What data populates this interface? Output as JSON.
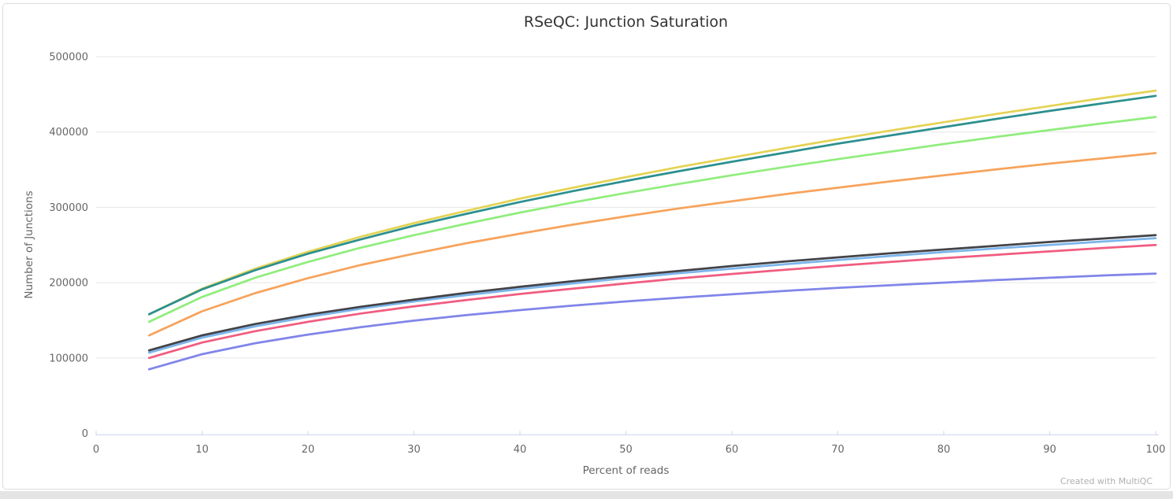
{
  "page": {
    "watermark": "Created with MultiQC"
  },
  "chart_data": {
    "type": "line",
    "title": "RSeQC: Junction Saturation",
    "xlabel": "Percent of reads",
    "ylabel": "Number of Junctions",
    "xlim": [
      0,
      100
    ],
    "ylim": [
      0,
      500000
    ],
    "x_ticks": [
      0,
      10,
      20,
      30,
      40,
      50,
      60,
      70,
      80,
      90,
      100
    ],
    "y_ticks": [
      0,
      100000,
      200000,
      300000,
      400000,
      500000
    ],
    "grid": "horizontal-only",
    "legend": "none",
    "x": [
      5,
      10,
      15,
      20,
      25,
      30,
      35,
      40,
      45,
      50,
      55,
      60,
      65,
      70,
      75,
      80,
      85,
      90,
      95,
      100
    ],
    "series": [
      {
        "name": "series-1",
        "color": "#7cb5ec",
        "values": [
          107000,
          127000,
          142000,
          154500,
          165500,
          175000,
          183500,
          191500,
          199000,
          206000,
          212500,
          218500,
          224500,
          230000,
          235500,
          240500,
          245500,
          250000,
          254500,
          259000
        ]
      },
      {
        "name": "series-2",
        "color": "#434348",
        "values": [
          110000,
          130000,
          145000,
          157500,
          168000,
          177500,
          186500,
          194500,
          202000,
          209000,
          215500,
          222000,
          228000,
          233500,
          239000,
          244000,
          249000,
          254000,
          258500,
          263000
        ]
      },
      {
        "name": "series-3",
        "color": "#90ed7d",
        "values": [
          148000,
          181000,
          206500,
          227500,
          246500,
          263000,
          278500,
          293000,
          306500,
          319000,
          331000,
          342500,
          353500,
          364000,
          374000,
          384000,
          393500,
          402500,
          411500,
          420000
        ]
      },
      {
        "name": "series-4",
        "color": "#f7a35c",
        "values": [
          130000,
          162000,
          186000,
          206000,
          223500,
          238500,
          252500,
          265000,
          277000,
          288000,
          298500,
          308000,
          317500,
          326000,
          334500,
          342500,
          350500,
          358000,
          365000,
          372000
        ]
      },
      {
        "name": "series-5",
        "color": "#8085e9",
        "values": [
          85000,
          105000,
          119500,
          131000,
          141000,
          149500,
          157000,
          163500,
          169500,
          175000,
          180000,
          184500,
          189000,
          193000,
          196500,
          200000,
          203500,
          206500,
          209500,
          212000
        ]
      },
      {
        "name": "series-6",
        "color": "#f15c80",
        "values": [
          100000,
          120500,
          135500,
          148000,
          159000,
          168500,
          177000,
          185000,
          192000,
          199000,
          205500,
          211500,
          217000,
          222500,
          227500,
          232500,
          237000,
          241500,
          246000,
          250000
        ]
      },
      {
        "name": "series-7",
        "color": "#e4d354",
        "values": [
          158000,
          192000,
          218500,
          241000,
          261000,
          279000,
          295500,
          311500,
          326000,
          340000,
          353500,
          366000,
          378500,
          390500,
          402000,
          413000,
          424000,
          434500,
          445000,
          455000
        ]
      },
      {
        "name": "series-8",
        "color": "#2b908f",
        "values": [
          158000,
          191000,
          216500,
          238500,
          257500,
          275500,
          291500,
          307000,
          321500,
          335000,
          348000,
          360500,
          372500,
          384500,
          395500,
          406500,
          417500,
          428000,
          438000,
          448000
        ]
      }
    ],
    "colors": {
      "title_text": "#333333",
      "axis_label_text": "#666666",
      "gridline": "#e6e6e6",
      "axis_line": "#ccd6eb",
      "watermark_text": "#b0b0b0",
      "card_border": "#dcdcdc",
      "background": "#ffffff"
    }
  }
}
